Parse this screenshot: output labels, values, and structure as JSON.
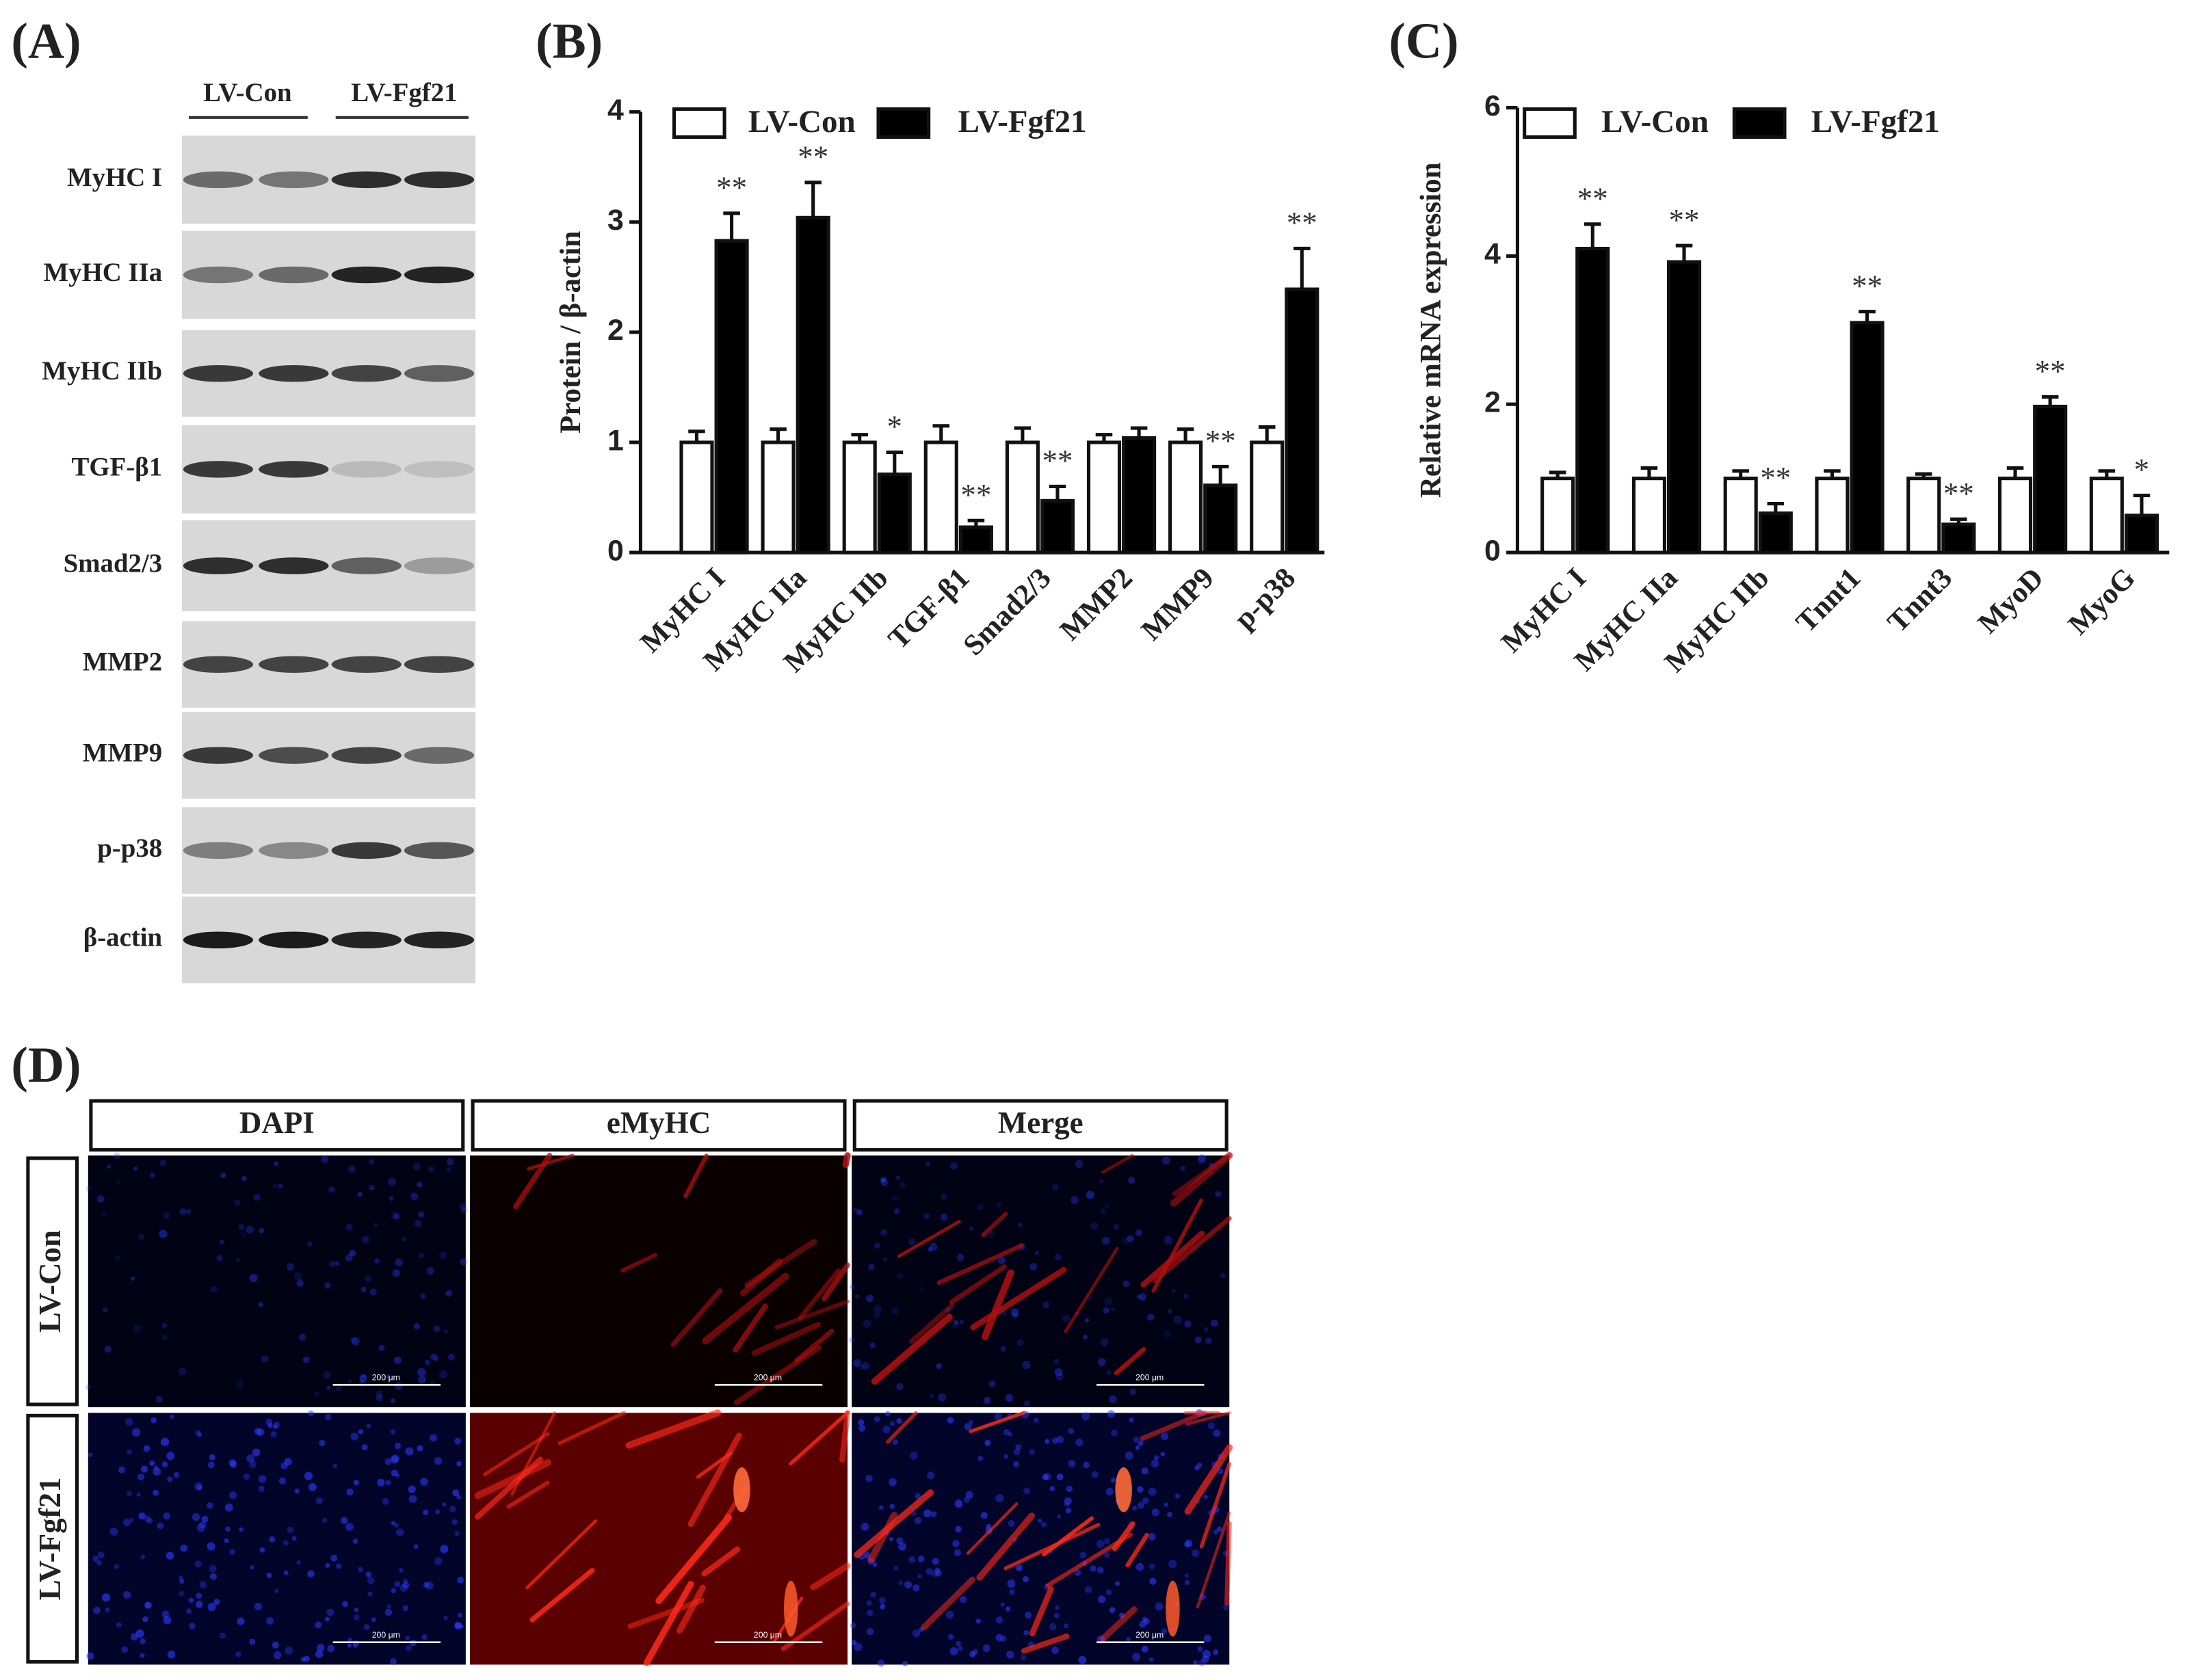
{
  "panel_labels": [
    "(A)",
    "(B)",
    "(C)",
    "(D)"
  ],
  "blot": {
    "groups": [
      "LV-Con",
      "LV-Fgf21"
    ],
    "rows": [
      "MyHC I",
      "MyHC IIa",
      "MyHC IIb",
      "TGF-β1",
      "Smad2/3",
      "MMP2",
      "MMP9",
      "p-p38",
      "β-actin"
    ]
  },
  "imaging": {
    "columns": [
      "DAPI",
      "eMyHC",
      "Merge"
    ],
    "rows": [
      "LV-Con",
      "LV-Fgf21"
    ],
    "scale_bar": "200 μm"
  },
  "chart_data": [
    {
      "type": "bar",
      "y_label": "Protein / β-actin",
      "categories": [
        "MyHC I",
        "MyHC IIa",
        "MyHC IIb",
        "TGF-β1",
        "Smad2/3",
        "MMP2",
        "MMP9",
        "p-p38"
      ],
      "series": [
        {
          "name": "LV-Con",
          "color": "#ffffff",
          "values": [
            1,
            1,
            1,
            1,
            1,
            1,
            1,
            1
          ],
          "errors": [
            0.1,
            0.12,
            0.07,
            0.15,
            0.13,
            0.07,
            0.12,
            0.14
          ],
          "annotations": [
            null,
            null,
            null,
            null,
            null,
            null,
            null,
            null
          ]
        },
        {
          "name": "LV-Fgf21",
          "color": "#000000",
          "values": [
            2.83,
            3.04,
            0.71,
            0.23,
            0.47,
            1.04,
            0.61,
            2.39
          ],
          "errors": [
            0.25,
            0.32,
            0.2,
            0.06,
            0.13,
            0.09,
            0.17,
            0.37
          ],
          "annotations": [
            "**",
            "**",
            "*",
            "**",
            "**",
            null,
            "**",
            "**"
          ]
        }
      ],
      "ylim": [
        0,
        4
      ],
      "yticks": [
        0,
        1,
        2,
        3,
        4
      ]
    },
    {
      "type": "bar",
      "y_label": "Relative  mRNA expression",
      "categories": [
        "MyHC I",
        "MyHC IIa",
        "MyHC IIb",
        "Tnnt1",
        "Tnnt3",
        "MyoD",
        "MyoG"
      ],
      "series": [
        {
          "name": "LV-Con",
          "color": "#ffffff",
          "values": [
            1,
            1,
            1,
            1,
            1,
            1,
            1
          ],
          "errors": [
            0.08,
            0.14,
            0.1,
            0.1,
            0.06,
            0.14,
            0.1
          ],
          "annotations": [
            null,
            null,
            null,
            null,
            null,
            null,
            null
          ]
        },
        {
          "name": "LV-Fgf21",
          "color": "#000000",
          "values": [
            4.1,
            3.92,
            0.53,
            3.1,
            0.38,
            1.97,
            0.5
          ],
          "errors": [
            0.33,
            0.22,
            0.13,
            0.15,
            0.07,
            0.13,
            0.27
          ],
          "annotations": [
            "**",
            "**",
            "**",
            "**",
            "**",
            "**",
            "*"
          ]
        }
      ],
      "ylim": [
        0,
        6
      ],
      "yticks": [
        0,
        2,
        4,
        6
      ]
    }
  ]
}
